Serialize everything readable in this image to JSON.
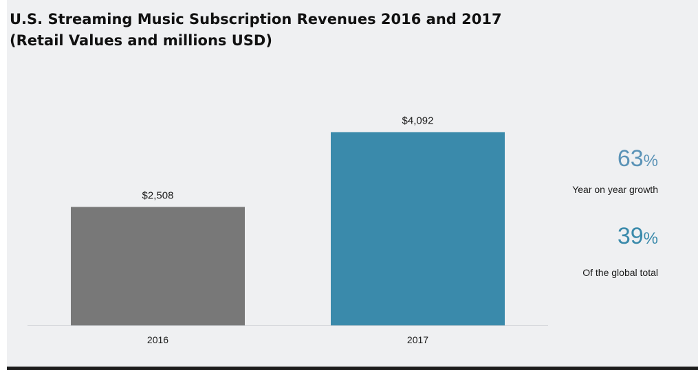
{
  "title": {
    "line1": "U.S. Streaming Music Subscription Revenues 2016 and 2017",
    "line2": "(Retail Values and millions USD)"
  },
  "chart_data": {
    "type": "bar",
    "title": "U.S. Streaming Music Subscription Revenues 2016 and 2017 (Retail Values and millions USD)",
    "categories": [
      "2016",
      "2017"
    ],
    "values": [
      2508,
      4092
    ],
    "value_labels": [
      "$2,508",
      "$4,092"
    ],
    "bar_colors": [
      "#787878",
      "#3a8aab"
    ],
    "xlabel": "",
    "ylabel": "",
    "ylim": [
      0,
      5000
    ],
    "grid": false,
    "legend": "none"
  },
  "stats": [
    {
      "value": "63",
      "unit": "%",
      "label": "Year on year growth"
    },
    {
      "value": "39",
      "unit": "%",
      "label": "Of the global total"
    }
  ],
  "colors": {
    "background": "#eff0f2",
    "title": "#111111",
    "stat_growth": "#5b93b7",
    "stat_share": "#3a8aab",
    "axis": "#d0d3d7",
    "bottom_rule": "#1c1c1c"
  }
}
